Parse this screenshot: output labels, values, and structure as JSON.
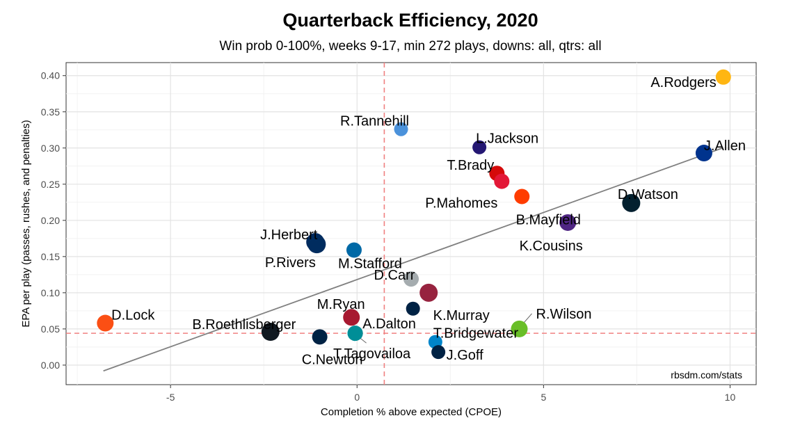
{
  "chart_data": {
    "type": "scatter",
    "title": "Quarterback Efficiency, 2020",
    "subtitle": "Win prob 0-100%, weeks 9-17, min 272 plays, downs: all, qtrs: all",
    "xlabel": "Completion % above expected (CPOE)",
    "ylabel": "EPA per play (passes, rushes, and penalties)",
    "caption": "rbsdm.com/stats",
    "xlim": [
      -7.8,
      10.7
    ],
    "ylim": [
      -0.027,
      0.418
    ],
    "xticks": [
      -5,
      0,
      5,
      10
    ],
    "xtick_labels": [
      "-5",
      "0",
      "5",
      "10"
    ],
    "yticks": [
      0.0,
      0.05,
      0.1,
      0.15,
      0.2,
      0.25,
      0.3,
      0.35,
      0.4
    ],
    "ytick_labels": [
      "0.00",
      "0.05",
      "0.10",
      "0.15",
      "0.20",
      "0.25",
      "0.30",
      "0.35",
      "0.40"
    ],
    "grid": true,
    "reference_lines": {
      "x_mean": 0.73,
      "y_mean": 0.044,
      "color": "#f08080"
    },
    "trend_line": {
      "x": [
        -6.8,
        9.8
      ],
      "y": [
        -0.008,
        0.3
      ]
    },
    "points": [
      {
        "name": "A.Rodgers",
        "x": 9.82,
        "y": 0.398,
        "color": "#FFB612"
      },
      {
        "name": "J.Allen",
        "x": 9.3,
        "y": 0.293,
        "color": "#00338D"
      },
      {
        "name": "R.Tannehill",
        "x": 1.18,
        "y": 0.326,
        "color": "#4B92DB"
      },
      {
        "name": "L.Jackson",
        "x": 3.28,
        "y": 0.301,
        "color": "#241773"
      },
      {
        "name": "T.Brady",
        "x": 3.75,
        "y": 0.265,
        "color": "#D50A0A"
      },
      {
        "name": "P.Mahomes",
        "x": 3.88,
        "y": 0.254,
        "color": "#E31837"
      },
      {
        "name": "B.Mayfield",
        "x": 4.42,
        "y": 0.233,
        "color": "#FF3C00"
      },
      {
        "name": "D.Watson",
        "x": 7.35,
        "y": 0.224,
        "color": "#03202F"
      },
      {
        "name": "K.Cousins",
        "x": 5.65,
        "y": 0.197,
        "color": "#4F2683"
      },
      {
        "name": "J.Herbert",
        "x": -1.12,
        "y": 0.17,
        "color": "#002A5E"
      },
      {
        "name": "P.Rivers",
        "x": -1.08,
        "y": 0.167,
        "color": "#002C5F"
      },
      {
        "name": "M.Stafford",
        "x": -0.08,
        "y": 0.159,
        "color": "#0069A6"
      },
      {
        "name": "D.Carr",
        "x": 1.45,
        "y": 0.119,
        "color": "#A5ACAF"
      },
      {
        "name": "K.Murray",
        "x": 1.92,
        "y": 0.1,
        "color": "#97233F"
      },
      {
        "name": "M.Ryan",
        "x": -0.15,
        "y": 0.066,
        "color": "#A71930"
      },
      {
        "name": "A.Dalton",
        "x": -0.05,
        "y": 0.044,
        "color": "#008E97"
      },
      {
        "name": "D.Lock",
        "x": -6.75,
        "y": 0.058,
        "color": "#FB4F14"
      },
      {
        "name": "B.Roethlisberger",
        "x": -2.32,
        "y": 0.046,
        "color": "#101820"
      },
      {
        "name": "C.Newton",
        "x": -1.0,
        "y": 0.039,
        "color": "#002244"
      },
      {
        "name": "T.Tagovailoa",
        "x": -0.05,
        "y": 0.044,
        "color": "#008E97"
      },
      {
        "name": "R.Wilson",
        "x": 4.35,
        "y": 0.05,
        "color": "#69BE28"
      },
      {
        "name": "T.Bridgewater",
        "x": 2.1,
        "y": 0.032,
        "color": "#0085CA"
      },
      {
        "name": "J.Goff",
        "x": 2.18,
        "y": 0.018,
        "color": "#002244"
      },
      {
        "name": "K.Murray (dot)",
        "x": 1.5,
        "y": 0.078,
        "color": "#002244"
      }
    ]
  }
}
